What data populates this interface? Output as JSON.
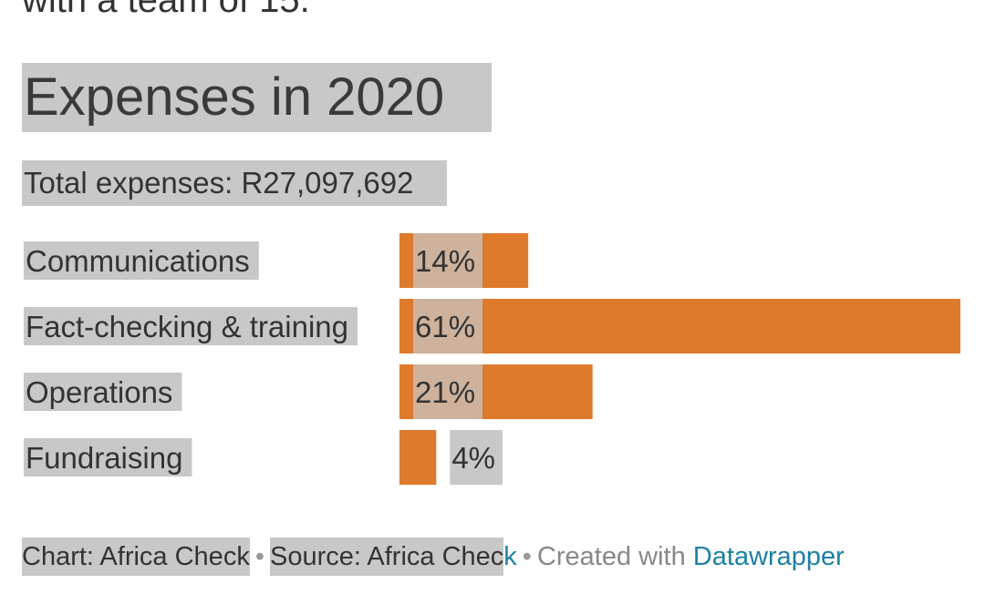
{
  "top_fragment": "with a team of 15.",
  "chart_data": {
    "type": "bar",
    "orientation": "horizontal",
    "title": "Expenses in 2020",
    "subtitle": "Total expenses: R27,097,692",
    "categories": [
      "Communications",
      "Fact-checking & training",
      "Operations",
      "Fundraising"
    ],
    "values": [
      14,
      61,
      21,
      4
    ],
    "value_labels": [
      "14%",
      "61%",
      "21%",
      "4%"
    ],
    "unit": "%",
    "xlim": [
      0,
      61
    ],
    "color": "#dd7a2c"
  },
  "footer": {
    "chart_credit": "Chart: Africa Check",
    "source_prefix": "Source: Africa Chec",
    "source_suffix": "k",
    "created_with": "Created with",
    "tool": "Datawrapper",
    "separator": "•"
  },
  "colors": {
    "bar": "#dd7a2c",
    "highlight": "#c8c8c8",
    "link": "#1d81a2"
  }
}
